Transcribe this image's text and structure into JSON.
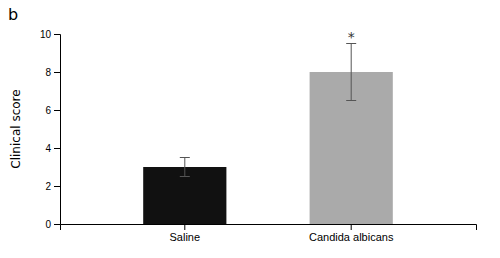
{
  "chart_data": {
    "type": "bar",
    "title": "b",
    "categories": [
      "Saline",
      "Candida albicans"
    ],
    "values": [
      3.0,
      8.0
    ],
    "errors": [
      0.5,
      1.5
    ],
    "colors": [
      "#111111",
      "#aaaaaa"
    ],
    "ylabel": "Clinical score",
    "ylim": [
      0,
      10
    ],
    "yticks": [
      0,
      2,
      4,
      6,
      8,
      10
    ],
    "annotations": [
      {
        "text": "*",
        "x": "Candida albicans"
      }
    ]
  }
}
